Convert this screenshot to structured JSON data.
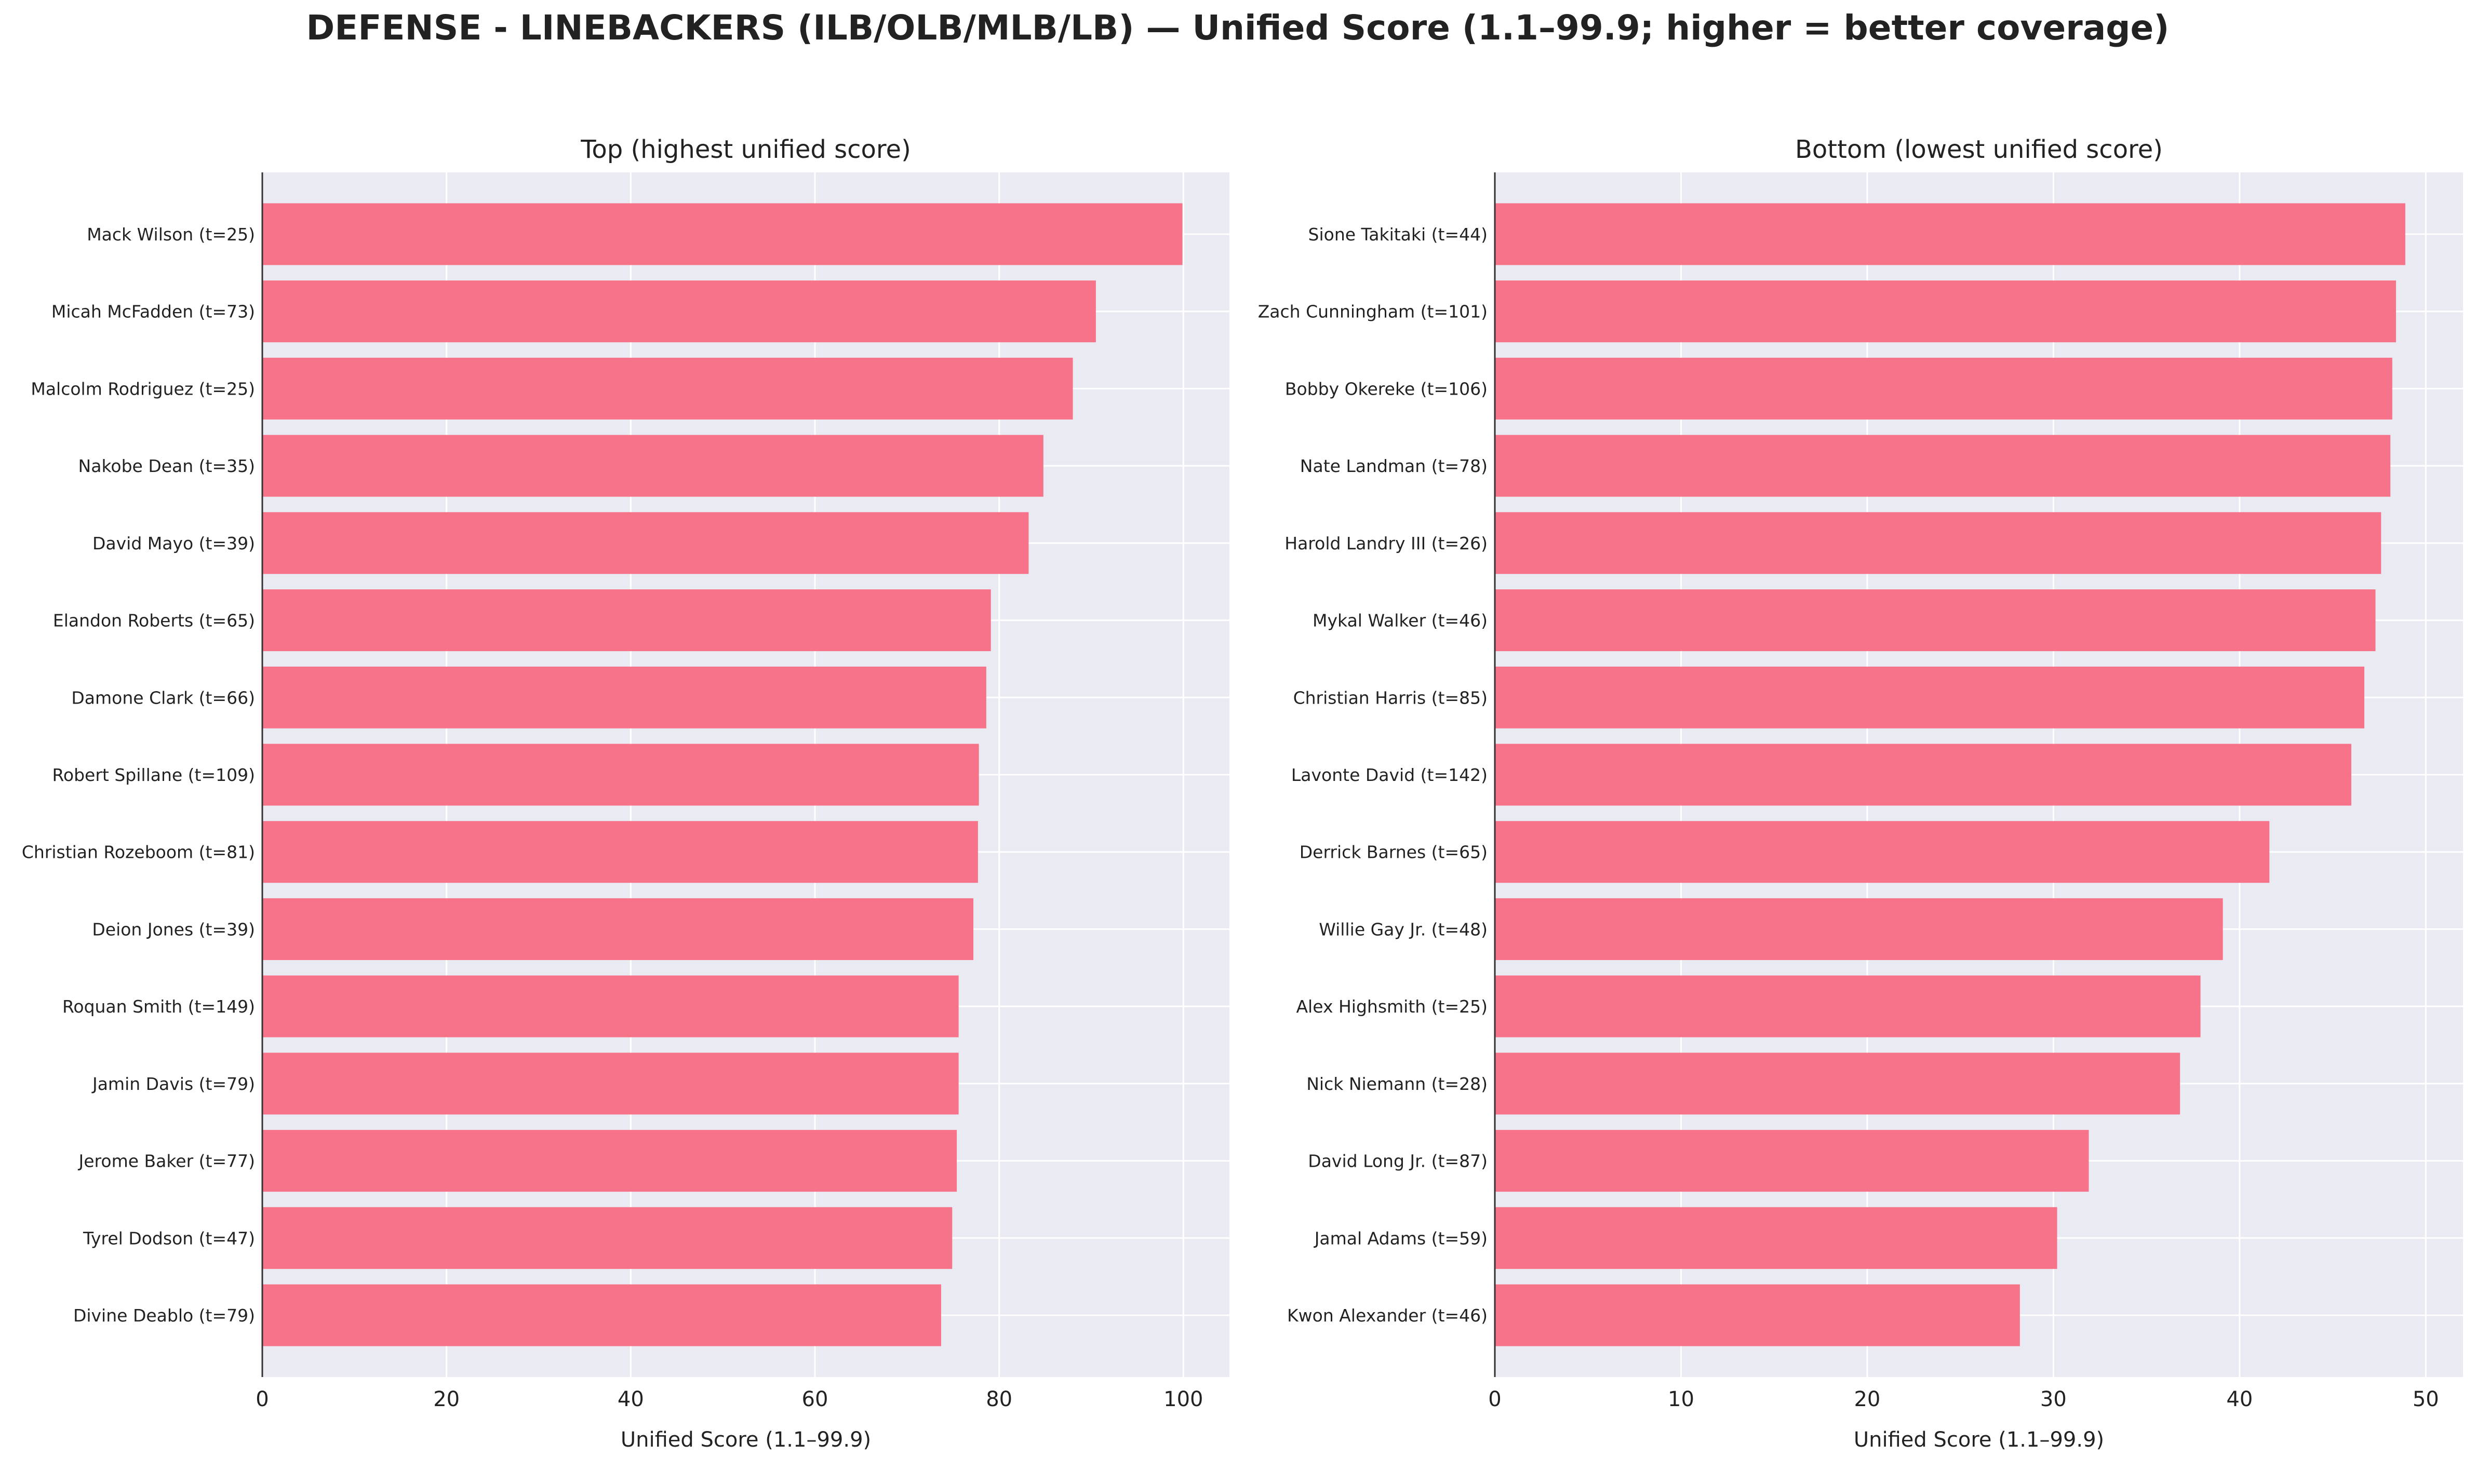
{
  "figure": {
    "title": "DEFENSE - LINEBACKERS (ILB/OLB/MLB/LB) — Unified Score (1.1–99.9; higher = better coverage)"
  },
  "colors": {
    "bar": "#f7738a",
    "plot_bg": "#eaeaf2",
    "grid": "#ffffff",
    "axis": "#333333",
    "text": "#222222"
  },
  "chart_data": [
    {
      "type": "bar",
      "orientation": "horizontal",
      "title": "Top (highest unified score)",
      "xlabel": "Unified Score (1.1–99.9)",
      "ylabel": "",
      "xlim": [
        0,
        105
      ],
      "xticks": [
        0,
        20,
        40,
        60,
        80,
        100
      ],
      "grid": true,
      "categories": [
        "Mack Wilson  (t=25)",
        "Micah McFadden  (t=73)",
        "Malcolm Rodriguez  (t=25)",
        "Nakobe Dean  (t=35)",
        "David Mayo  (t=39)",
        "Elandon Roberts  (t=65)",
        "Damone Clark  (t=66)",
        "Robert Spillane  (t=109)",
        "Christian Rozeboom  (t=81)",
        "Deion Jones  (t=39)",
        "Roquan Smith  (t=149)",
        "Jamin Davis  (t=79)",
        "Jerome Baker  (t=77)",
        "Tyrel Dodson  (t=47)",
        "Divine Deablo  (t=79)"
      ],
      "values": [
        99.9,
        90.5,
        88.0,
        84.8,
        83.2,
        79.1,
        78.6,
        77.8,
        77.7,
        77.2,
        75.6,
        75.6,
        75.4,
        74.9,
        73.7
      ]
    },
    {
      "type": "bar",
      "orientation": "horizontal",
      "title": "Bottom (lowest unified score)",
      "xlabel": "Unified Score (1.1–99.9)",
      "ylabel": "",
      "xlim": [
        0,
        52
      ],
      "xticks": [
        0,
        10,
        20,
        30,
        40,
        50
      ],
      "grid": true,
      "categories": [
        "Sione Takitaki  (t=44)",
        "Zach Cunningham  (t=101)",
        "Bobby Okereke  (t=106)",
        "Nate Landman  (t=78)",
        "Harold Landry III  (t=26)",
        "Mykal Walker  (t=46)",
        "Christian Harris  (t=85)",
        "Lavonte David  (t=142)",
        "Derrick Barnes  (t=65)",
        "Willie Gay Jr.  (t=48)",
        "Alex Highsmith  (t=25)",
        "Nick Niemann  (t=28)",
        "David Long Jr.  (t=87)",
        "Jamal Adams  (t=59)",
        "Kwon Alexander  (t=46)"
      ],
      "values": [
        48.9,
        48.4,
        48.2,
        48.1,
        47.6,
        47.3,
        46.7,
        46.0,
        41.6,
        39.1,
        37.9,
        36.8,
        31.9,
        30.2,
        28.2
      ]
    }
  ]
}
